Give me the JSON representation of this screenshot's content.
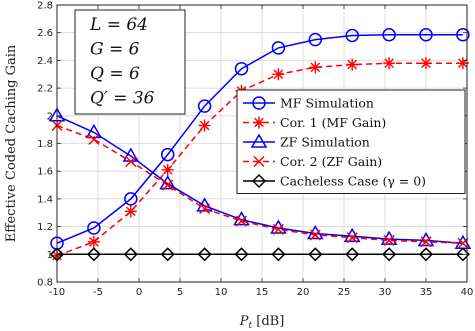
{
  "chart_data": {
    "type": "line",
    "xlabel": "P_t [dB]",
    "xlabel_main": "P",
    "xlabel_sub": "t",
    "xlabel_unit": " [dB]",
    "ylabel": "Effective Coded Caching Gain",
    "xlim": [
      -10,
      40
    ],
    "ylim": [
      0.8,
      2.8
    ],
    "xticks": [
      "-10",
      "-5",
      "0",
      "5",
      "10",
      "15",
      "20",
      "25",
      "30",
      "35",
      "40"
    ],
    "yticks": [
      "0.8",
      "1",
      "1.2",
      "1.4",
      "1.6",
      "1.8",
      "2",
      "2.2",
      "2.4",
      "2.6",
      "2.8"
    ],
    "grid": true,
    "legend_position": "center-right",
    "params_box": [
      {
        "symbol": "L",
        "value": "64"
      },
      {
        "symbol": "G",
        "value": "6"
      },
      {
        "symbol": "Q",
        "value": "6"
      },
      {
        "symbol": "Q′",
        "value": "36"
      }
    ],
    "x": [
      -10,
      -5.5,
      -1,
      3.5,
      8,
      12.5,
      17,
      21.5,
      26,
      30.5,
      35,
      39.5
    ],
    "series": [
      {
        "name": "MF Simulation",
        "color": "#0000ff",
        "dash": "solid",
        "marker": "circle",
        "values": [
          1.08,
          1.19,
          1.4,
          1.72,
          2.07,
          2.34,
          2.49,
          2.55,
          2.58,
          2.585,
          2.585,
          2.585
        ]
      },
      {
        "name": "Cor. 1 (MF Gain)",
        "color": "#ff0000",
        "dash": "dashed",
        "marker": "asterisk",
        "values": [
          0.99,
          1.09,
          1.31,
          1.61,
          1.93,
          2.18,
          2.3,
          2.35,
          2.37,
          2.38,
          2.38,
          2.38
        ]
      },
      {
        "name": "ZF Simulation",
        "color": "#0000ff",
        "dash": "solid",
        "marker": "triangle",
        "values": [
          2.0,
          1.88,
          1.71,
          1.51,
          1.35,
          1.25,
          1.19,
          1.15,
          1.13,
          1.11,
          1.1,
          1.08
        ]
      },
      {
        "name": "Cor. 2 (ZF Gain)",
        "color": "#ff0000",
        "dash": "dashed",
        "marker": "x",
        "values": [
          1.93,
          1.83,
          1.67,
          1.5,
          1.33,
          1.24,
          1.18,
          1.14,
          1.12,
          1.1,
          1.09,
          1.08
        ]
      },
      {
        "name": "Cacheless Case (γ = 0)",
        "color": "#000000",
        "dash": "solid",
        "marker": "diamond",
        "values": [
          1,
          1,
          1,
          1,
          1,
          1,
          1,
          1,
          1,
          1,
          1,
          1
        ]
      }
    ]
  }
}
